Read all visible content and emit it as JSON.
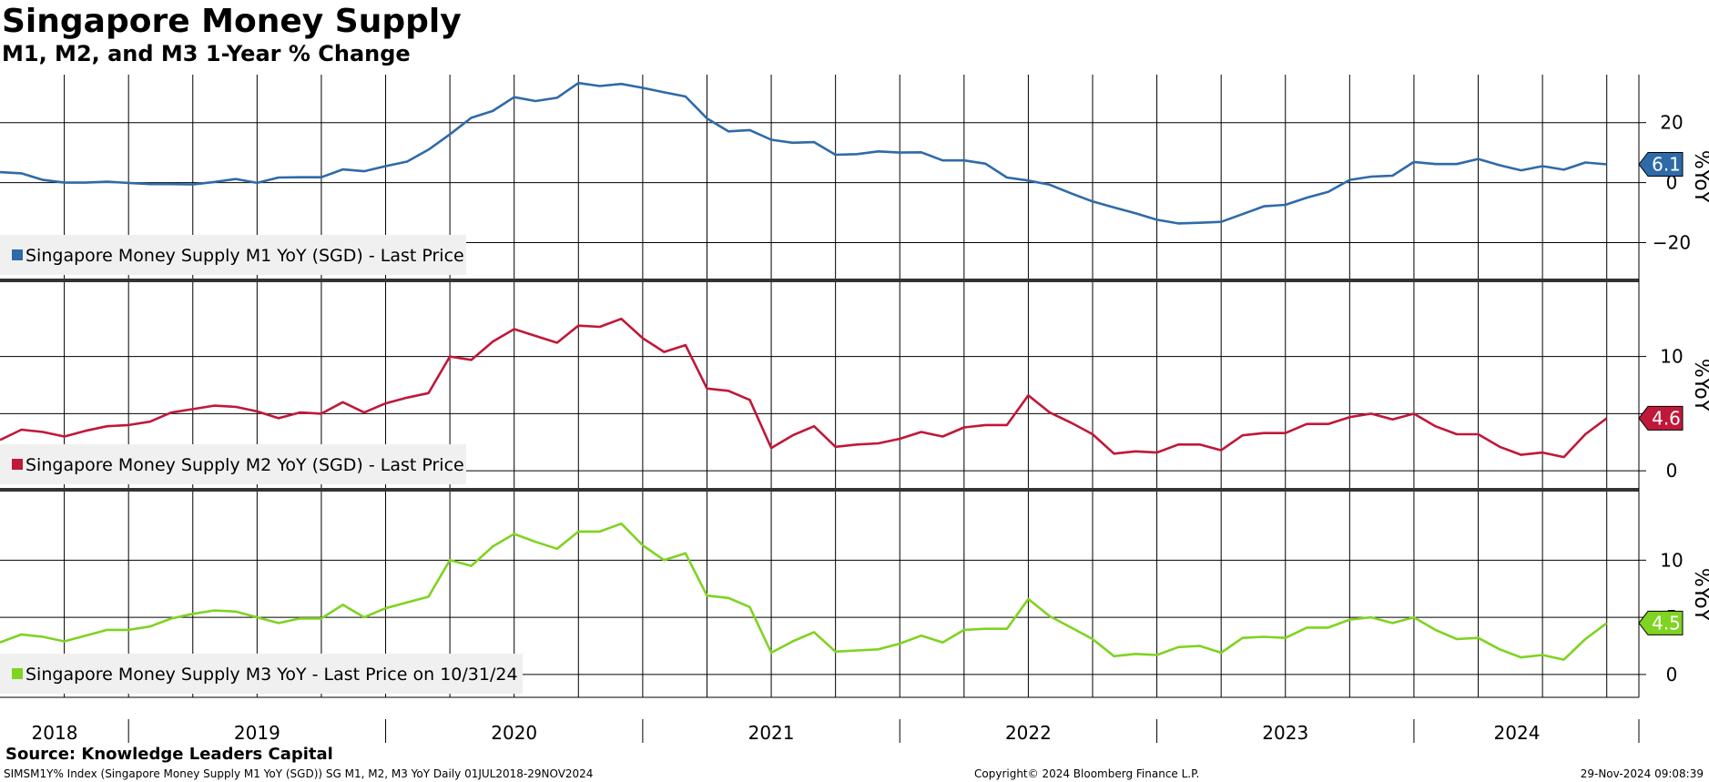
{
  "title": "Singapore Money Supply",
  "subtitle": "M1, M2, and M3 1-Year % Change",
  "source": "Source: Knowledge Leaders Capital",
  "footer": {
    "left": "SIMSM1Y% Index (Singapore Money Supply M1 YoY (SGD)) SG M1, M2, M3 YoY  Daily 01JUL2018-29NOV2024",
    "center": "Copyright© 2024 Bloomberg Finance L.P.",
    "right": "29-Nov-2024 09:08:39"
  },
  "chart_data": {
    "type": "line",
    "x_axis": {
      "start": "2018-07",
      "end": "2024-11",
      "year_labels": [
        "2018",
        "2019",
        "2020",
        "2021",
        "2022",
        "2023",
        "2024"
      ]
    },
    "panels": [
      {
        "name": "Singapore Money Supply M1 YoY (SGD) - Last Price",
        "legend": "Singapore Money Supply M1 YoY (SGD) - Last Price",
        "color": "#2f6aa8",
        "unit_label": "%YoY",
        "ylim": [
          -32,
          36
        ],
        "yticks": [
          -20,
          0,
          20
        ],
        "last_value": "6.1",
        "start_month": "2018-07",
        "values": [
          3.5,
          3.1,
          0.9,
          0.0,
          0.0,
          0.3,
          -0.1,
          -0.5,
          -0.5,
          -0.6,
          0.2,
          1.2,
          -0.1,
          1.7,
          1.8,
          1.8,
          4.4,
          3.8,
          5.5,
          7.0,
          11.0,
          16.1,
          21.6,
          23.9,
          28.5,
          27.2,
          28.3,
          33.2,
          32.2,
          32.9,
          31.6,
          30.1,
          28.7,
          21.4,
          17.1,
          17.5,
          14.3,
          13.3,
          13.5,
          9.3,
          9.5,
          10.4,
          10.0,
          10.1,
          7.4,
          7.4,
          6.3,
          1.7,
          0.7,
          -0.7,
          -3.6,
          -6.3,
          -8.3,
          -10.2,
          -12.4,
          -13.6,
          -13.4,
          -13.1,
          -10.5,
          -7.9,
          -7.4,
          -5.0,
          -3.1,
          0.9,
          2.0,
          2.3,
          6.9,
          6.2,
          6.2,
          7.9,
          5.8,
          4.1,
          5.5,
          4.3,
          6.7,
          6.1
        ]
      },
      {
        "name": "Singapore Money Supply M2 YoY (SGD) - Last Price",
        "legend": "Singapore Money Supply M2 YoY (SGD) - Last Price",
        "color": "#c0183a",
        "unit_label": "%YoY",
        "ylim": [
          -1.5,
          16.5
        ],
        "yticks": [
          0,
          5,
          10
        ],
        "last_value": "4.6",
        "start_month": "2018-07",
        "values": [
          2.7,
          3.6,
          3.4,
          3.0,
          3.5,
          3.9,
          4.0,
          4.3,
          5.1,
          5.4,
          5.7,
          5.6,
          5.2,
          4.6,
          5.1,
          5.0,
          6.0,
          5.1,
          5.9,
          6.4,
          6.8,
          10.0,
          9.7,
          11.3,
          12.4,
          11.8,
          11.2,
          12.7,
          12.6,
          13.3,
          11.6,
          10.4,
          11.0,
          7.2,
          7.0,
          6.2,
          2.0,
          3.1,
          3.9,
          2.1,
          2.3,
          2.4,
          2.8,
          3.4,
          3.0,
          3.8,
          4.0,
          4.0,
          6.6,
          5.1,
          4.2,
          3.2,
          1.5,
          1.7,
          1.6,
          2.3,
          2.3,
          1.8,
          3.1,
          3.3,
          3.3,
          4.1,
          4.1,
          4.7,
          5.0,
          4.5,
          5.0,
          3.9,
          3.2,
          3.2,
          2.1,
          1.4,
          1.6,
          1.2,
          3.2,
          4.6
        ]
      },
      {
        "name": "Singapore Money Supply M3 YoY - Last Price on 10/31/24",
        "legend": "Singapore Money Supply M3 YoY - Last Price on 10/31/24",
        "color": "#7fd321",
        "unit_label": "%YoY",
        "ylim": [
          -2.0,
          16.0
        ],
        "yticks": [
          0,
          5,
          10
        ],
        "last_value": "4.5",
        "start_month": "2018-07",
        "values": [
          2.8,
          3.5,
          3.3,
          2.9,
          3.4,
          3.9,
          3.9,
          4.2,
          4.9,
          5.3,
          5.6,
          5.5,
          5.0,
          4.5,
          4.9,
          4.9,
          6.1,
          5.0,
          5.8,
          6.3,
          6.8,
          10.0,
          9.5,
          11.2,
          12.3,
          11.6,
          11.0,
          12.5,
          12.5,
          13.2,
          11.3,
          10.0,
          10.6,
          6.9,
          6.7,
          5.9,
          1.9,
          2.9,
          3.7,
          2.0,
          2.1,
          2.2,
          2.7,
          3.4,
          2.8,
          3.9,
          4.0,
          4.0,
          6.6,
          5.1,
          4.1,
          3.1,
          1.6,
          1.8,
          1.7,
          2.4,
          2.5,
          1.9,
          3.2,
          3.3,
          3.2,
          4.1,
          4.1,
          4.8,
          5.0,
          4.5,
          5.0,
          3.9,
          3.1,
          3.2,
          2.2,
          1.5,
          1.7,
          1.3,
          3.1,
          4.5
        ]
      }
    ]
  }
}
